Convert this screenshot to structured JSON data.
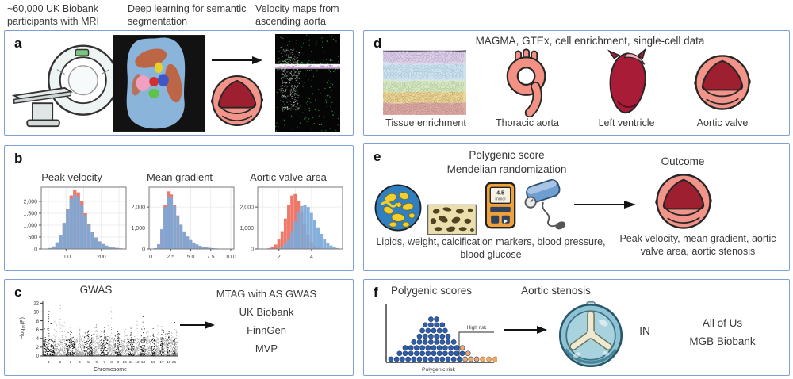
{
  "figure": {
    "top_labels": [
      "~60,000 UK Biobank participants with MRI",
      "Deep learning for semantic segmentation",
      "Velocity maps from ascending aorta"
    ]
  },
  "panels": {
    "a": {
      "letter": "a"
    },
    "b": {
      "letter": "b"
    },
    "c": {
      "letter": "c",
      "mtag_lines": [
        "MTAG with AS GWAS",
        "UK Biobank",
        "FinnGen",
        "MVP"
      ]
    },
    "d": {
      "letter": "d",
      "title": "MAGMA, GTEx, cell enrichment, single-cell data",
      "item_labels": [
        "Tissue enrichment",
        "Thoracic aorta",
        "Left ventricle",
        "Aortic valve"
      ]
    },
    "e": {
      "letter": "e",
      "title_line1": "Polygenic score",
      "title_line2": "Mendelian randomization",
      "outcome_label": "Outcome",
      "meter_value": "4.5",
      "meter_unit": "mmol",
      "exposures_caption": "Lipids, weight, calcification markers, blood pressure, blood glucose",
      "outcomes_caption": "Peak velocity, mean gradient, aortic valve area, aortic stenosis"
    },
    "f": {
      "letter": "f",
      "title_scores": "Polygenic scores",
      "title_stenosis": "Aortic stenosis",
      "in_label": "IN",
      "cohorts": [
        "All of Us",
        "MGB Biobank"
      ]
    }
  },
  "chart_data": [
    {
      "type": "histogram",
      "title": "Peak velocity",
      "xlim": [
        30,
        270
      ],
      "ylim": [
        0,
        2600
      ],
      "bin_start": 40,
      "bin_width": 10,
      "x_ticks": [
        100,
        200
      ],
      "x_tick_labels": [
        "100",
        "200"
      ],
      "y_ticks": [
        0,
        500,
        1000,
        1500,
        2000
      ],
      "y_tick_labels": [
        "0",
        "500",
        "1,000",
        "1,500",
        "2,000"
      ],
      "grid_x": [
        50,
        100,
        150,
        200,
        250
      ],
      "series": [
        {
          "color": "#ed7161",
          "opacity": 0.95,
          "values": [
            10,
            30,
            90,
            250,
            550,
            1050,
            1700,
            2250,
            2500,
            2380,
            2000,
            1500,
            1050,
            720,
            480,
            320,
            210,
            140,
            95,
            60,
            40,
            25,
            12
          ]
        },
        {
          "color": "#7aa9d8",
          "opacity": 0.92,
          "values": [
            15,
            40,
            110,
            280,
            600,
            1100,
            1650,
            2100,
            2280,
            2180,
            1850,
            1420,
            1020,
            700,
            470,
            310,
            200,
            135,
            90,
            58,
            38,
            22,
            10
          ]
        }
      ]
    },
    {
      "type": "histogram",
      "title": "Mean gradient",
      "xlim": [
        -0.2,
        10.4
      ],
      "ylim": [
        0,
        2950
      ],
      "bin_start": 0.4,
      "bin_width": 0.4,
      "x_ticks": [
        0,
        2.5,
        5.0,
        7.5,
        10.0
      ],
      "x_tick_labels": [
        "0",
        "2.5",
        "5.0",
        "7.5",
        "10.0"
      ],
      "y_ticks": [
        0,
        1000,
        2000
      ],
      "y_tick_labels": [
        "0",
        "1,000",
        "2,000"
      ],
      "grid_x": [
        0,
        2.5,
        5,
        7.5,
        10
      ],
      "series": [
        {
          "color": "#ed7161",
          "opacity": 0.95,
          "values": [
            30,
            200,
            900,
            2100,
            2750,
            2600,
            2100,
            1600,
            1150,
            820,
            580,
            410,
            290,
            200,
            140,
            100,
            70,
            48,
            33,
            22,
            15,
            10,
            6,
            4
          ]
        },
        {
          "color": "#7aa9d8",
          "opacity": 0.92,
          "values": [
            40,
            230,
            950,
            2000,
            2500,
            2450,
            2050,
            1580,
            1160,
            840,
            600,
            430,
            310,
            220,
            155,
            110,
            78,
            55,
            38,
            26,
            18,
            12,
            8,
            5
          ]
        }
      ]
    },
    {
      "type": "histogram",
      "title": "Aortic valve area",
      "xlim": [
        0.7,
        5.9
      ],
      "ylim": [
        0,
        2950
      ],
      "bin_start": 0.9,
      "bin_width": 0.2,
      "x_ticks": [
        2,
        4
      ],
      "x_tick_labels": [
        "2",
        "4"
      ],
      "y_ticks": [
        0,
        1000,
        2000
      ],
      "y_tick_labels": [
        "0",
        "1,000",
        "2,000"
      ],
      "grid_x": [
        1,
        2,
        3,
        4,
        5
      ],
      "series": [
        {
          "color": "#ed7161",
          "opacity": 0.95,
          "values": [
            4,
            12,
            35,
            90,
            210,
            450,
            850,
            1450,
            2100,
            2550,
            2620,
            2300,
            1750,
            1150,
            650,
            330,
            150,
            62,
            24,
            9,
            3,
            1,
            0,
            0,
            0
          ]
        },
        {
          "color": "#7aa9d8",
          "opacity": 0.92,
          "values": [
            0,
            1,
            3,
            8,
            20,
            50,
            120,
            260,
            500,
            850,
            1300,
            1750,
            2050,
            2120,
            2000,
            1720,
            1380,
            1030,
            720,
            470,
            290,
            165,
            88,
            42,
            18
          ]
        }
      ]
    },
    {
      "type": "manhattan",
      "title": "GWAS",
      "xlabel": "Chromosome",
      "ylabel": "−log₁₀(P)",
      "ylim": [
        0,
        12
      ],
      "y_ticks": [
        0,
        2,
        4,
        6,
        8,
        10,
        12
      ],
      "point_colors": [
        "#161616",
        "#9b9b9b"
      ],
      "chromosomes": [
        {
          "label": "1",
          "width": 9,
          "peak": 10.5
        },
        {
          "label": "2",
          "width": 8.8,
          "peak": 12
        },
        {
          "label": "3",
          "width": 7.2,
          "peak": 7
        },
        {
          "label": "4",
          "width": 6.9,
          "peak": 6.5
        },
        {
          "label": "5",
          "width": 6.5,
          "peak": 6
        },
        {
          "label": "6",
          "width": 6.2,
          "peak": 7.5
        },
        {
          "label": "7",
          "width": 5.8,
          "peak": 6.5
        },
        {
          "label": "8",
          "width": 5.3,
          "peak": 12
        },
        {
          "label": "9",
          "width": 5,
          "peak": 5.5
        },
        {
          "label": "10",
          "width": 4.9,
          "peak": 7
        },
        {
          "label": "11",
          "width": 4.9,
          "peak": 6.5
        },
        {
          "label": "12",
          "width": 4.8,
          "peak": 8.5
        },
        {
          "label": "13",
          "width": 4.2,
          "peak": 10
        },
        {
          "label": "",
          "width": 3.9,
          "peak": 6
        },
        {
          "label": "15",
          "width": 3.7,
          "peak": 6.5
        },
        {
          "label": "",
          "width": 3.3,
          "peak": 7.5
        },
        {
          "label": "17",
          "width": 3,
          "peak": 7.5
        },
        {
          "label": "",
          "width": 2.8,
          "peak": 5.5
        },
        {
          "label": "19",
          "width": 2.1,
          "peak": 6
        },
        {
          "label": "",
          "width": 2.3,
          "peak": 6
        },
        {
          "label": "21",
          "width": 1.7,
          "peak": 12
        },
        {
          "label": "",
          "width": 1.8,
          "peak": 6
        }
      ]
    },
    {
      "type": "dot-pyramid",
      "xlabel": "Polygenic risk",
      "annotation": "High risk",
      "dot_colors": {
        "blue": "#2f5da8",
        "orange": "#f0a968"
      },
      "rows": [
        {
          "blue": 2,
          "orange": 0
        },
        {
          "blue": 4,
          "orange": 0
        },
        {
          "blue": 5,
          "orange": 0
        },
        {
          "blue": 6,
          "orange": 0
        },
        {
          "blue": 8,
          "orange": 0
        },
        {
          "blue": 10,
          "orange": 1
        },
        {
          "blue": 12,
          "orange": 1
        },
        {
          "blue": 13,
          "orange": 3
        }
      ],
      "extra_orange": 3
    }
  ],
  "colors": {
    "panel_border": "#7f9fd6",
    "text": "#3a3a3a",
    "hist_red": "#ed7161",
    "hist_blue": "#7aa9d8",
    "valve_body": "#f2948a",
    "valve_leaflet": "#9e1f30",
    "ventricle": "#a81c38",
    "thoracic_aorta": "#f29184",
    "prosthetic_teal": "#8fc3d4",
    "dot_blue": "#2f5da8",
    "dot_orange": "#f0a968"
  }
}
